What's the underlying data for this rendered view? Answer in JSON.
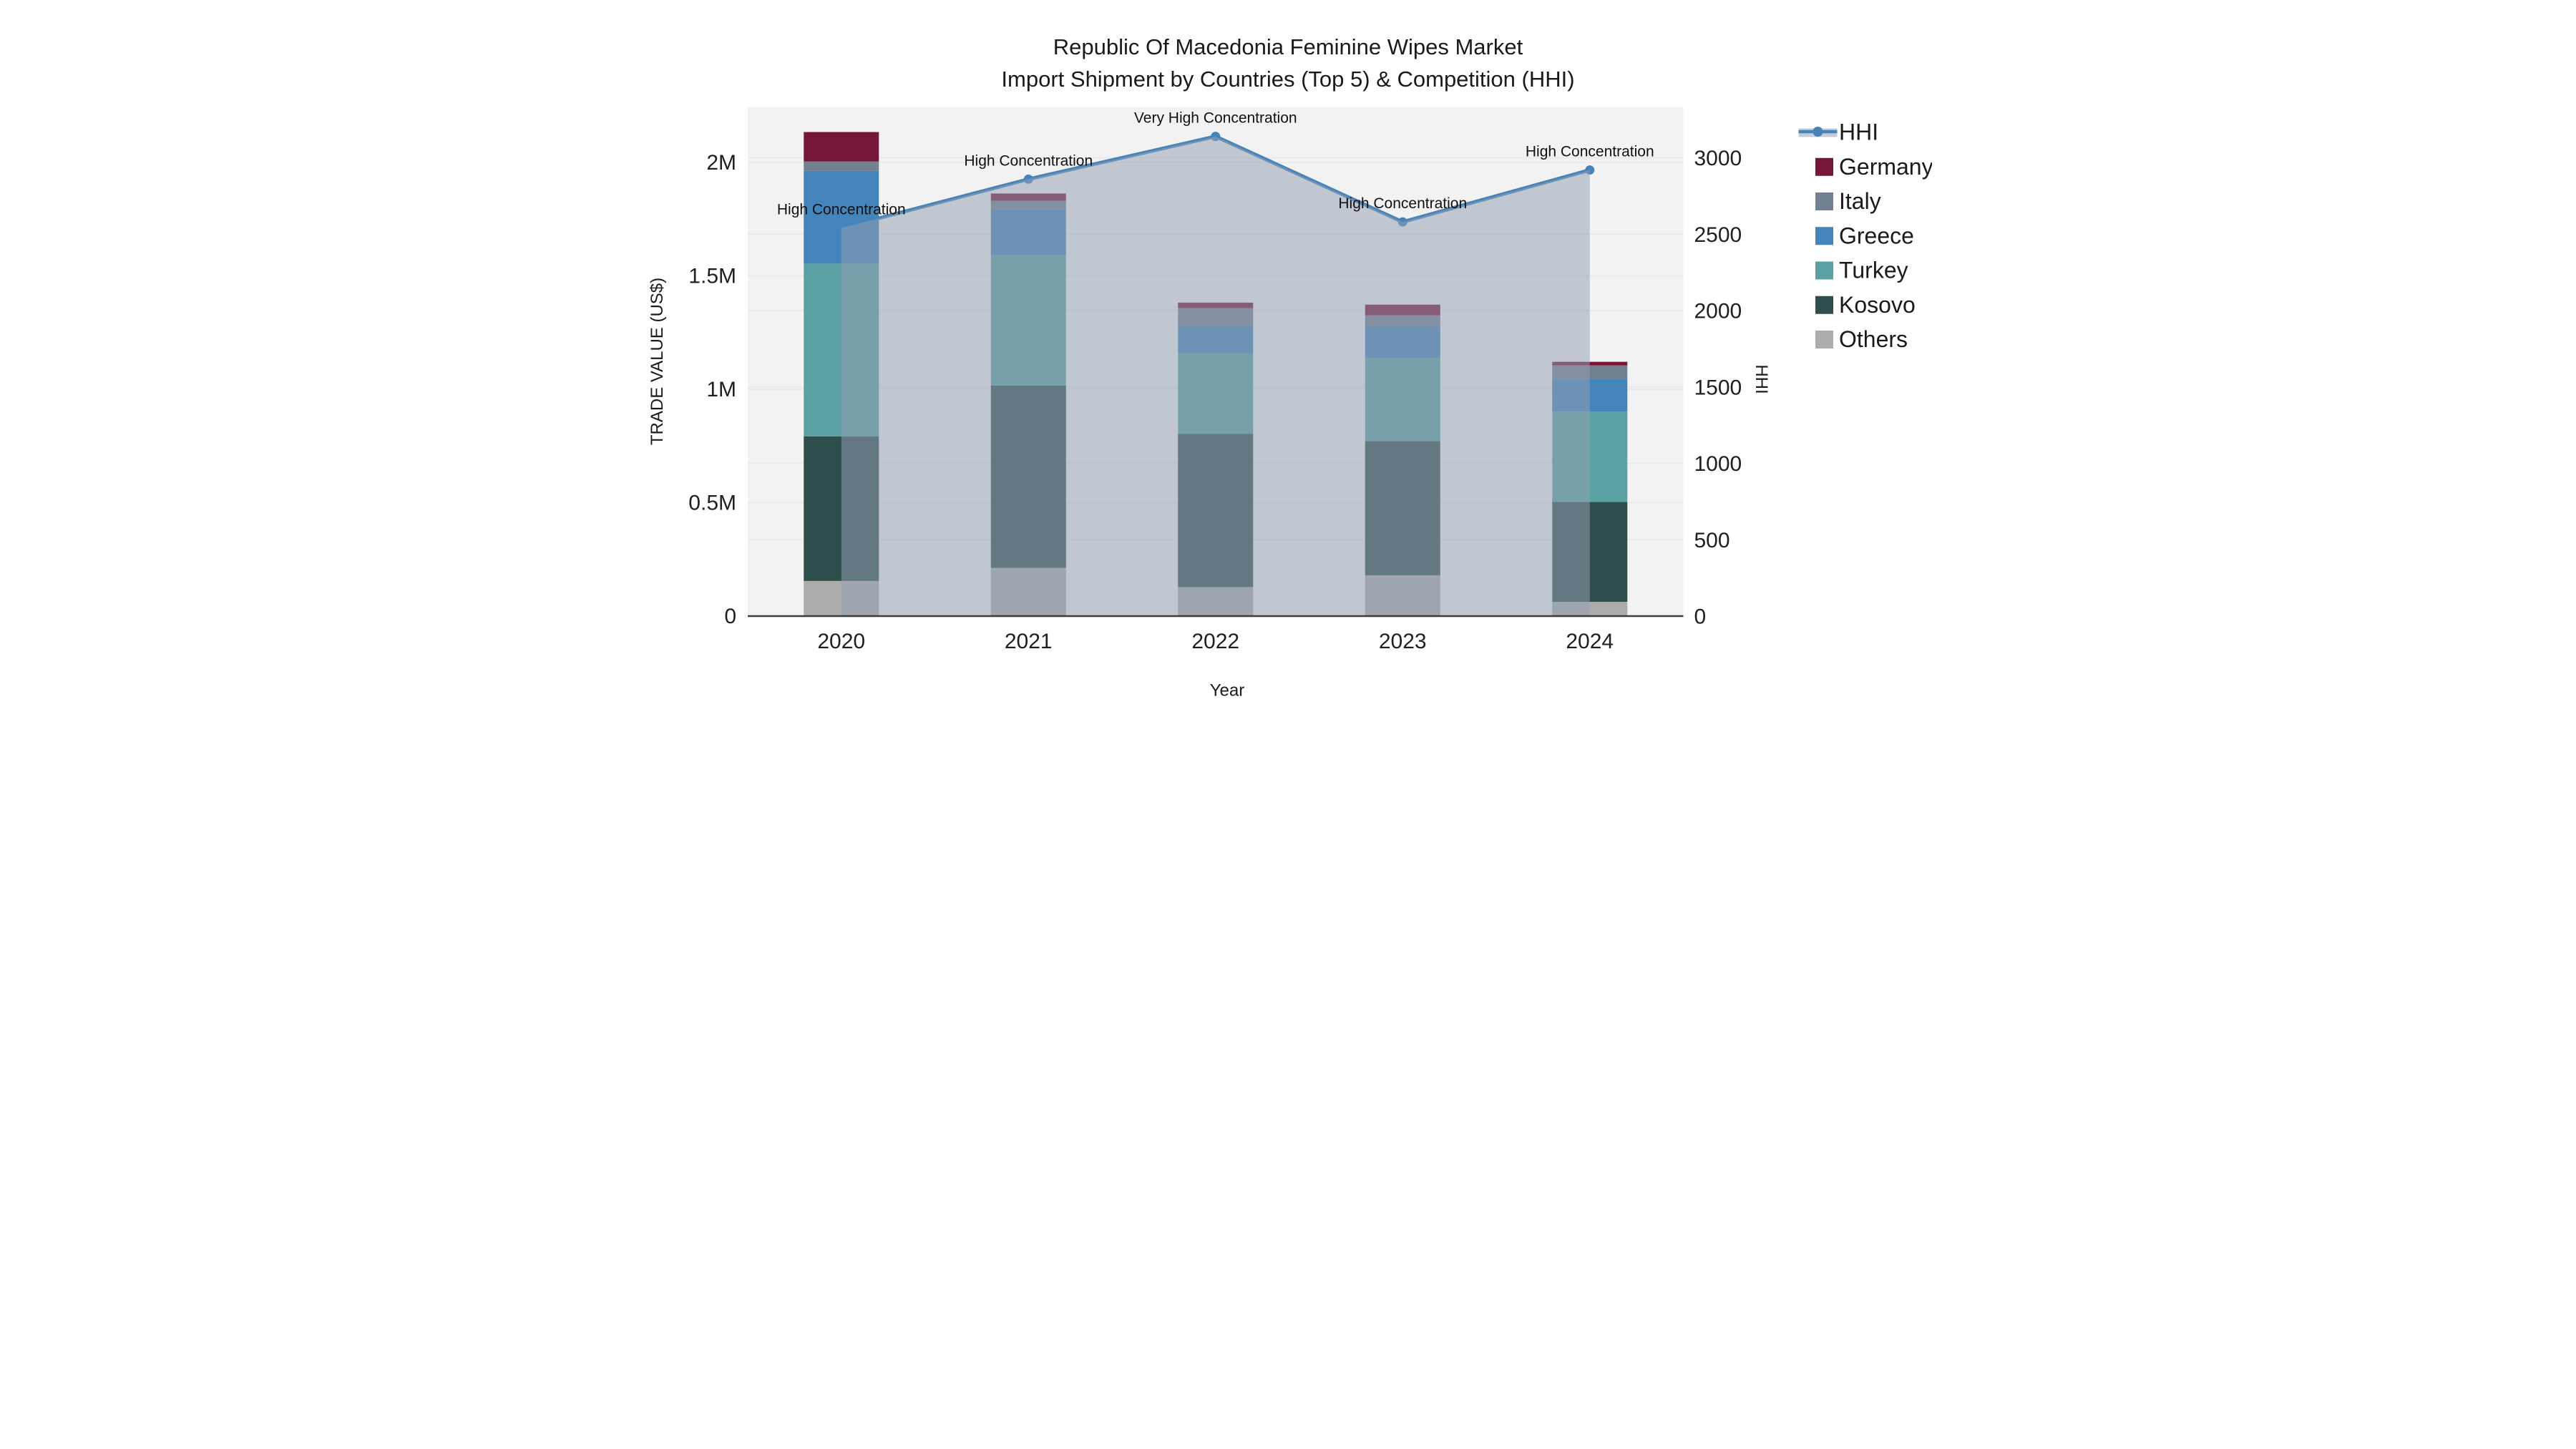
{
  "title": {
    "line1": "Republic Of Macedonia Feminine Wipes Market",
    "line2": "Import Shipment by Countries (Top 5) & Competition (HHI)"
  },
  "chart_data": {
    "type": "bar",
    "subtype": "stacked-bars-with-hhi-line-and-area-overlay",
    "title": "Republic Of Macedonia Feminine Wipes Market Import Shipment by Countries (Top 5) & Competition (HHI)",
    "xlabel": "Year",
    "ylabel_left": "TRADE VALUE (US$)",
    "ylabel_right": "HHI",
    "categories": [
      "2020",
      "2021",
      "2022",
      "2023",
      "2024"
    ],
    "stack_order_bottom_to_top": [
      "Others",
      "Kosovo",
      "Turkey",
      "Greece",
      "Italy",
      "Germany"
    ],
    "series": [
      {
        "name": "Germany",
        "color": "#75163a",
        "values": [
          130000,
          32000,
          24000,
          47000,
          16000
        ]
      },
      {
        "name": "Italy",
        "color": "#73808f",
        "values": [
          41000,
          39000,
          82000,
          50000,
          58000
        ]
      },
      {
        "name": "Greece",
        "color": "#4384bb",
        "values": [
          409000,
          199000,
          117000,
          137000,
          145000
        ]
      },
      {
        "name": "Turkey",
        "color": "#5ba1a4",
        "values": [
          762000,
          577000,
          356000,
          368000,
          399000
        ]
      },
      {
        "name": "Kosovo",
        "color": "#2e4e4c",
        "values": [
          637000,
          803000,
          675000,
          591000,
          440000
        ]
      },
      {
        "name": "Others",
        "color": "#acacaa",
        "values": [
          155000,
          213000,
          128000,
          180000,
          63000
        ]
      }
    ],
    "bar_totals": [
      2134000,
      1863000,
      1382000,
      1373000,
      1121000
    ],
    "line_series": {
      "name": "HHI",
      "color": "#4683b8",
      "fill_color": "rgba(148,160,178,0.52)",
      "values": [
        2540,
        2860,
        3140,
        2580,
        2920
      ],
      "annotations": [
        "High Concentration",
        "High Concentration",
        "Very High Concentration",
        "High Concentration",
        "High Concentration"
      ]
    },
    "axis_left": {
      "ticks": [
        "0",
        "0.5M",
        "1M",
        "1.5M",
        "2M"
      ],
      "tick_values": [
        0,
        500000,
        1000000,
        1500000,
        2000000
      ],
      "range": [
        0,
        2240000
      ]
    },
    "axis_right": {
      "ticks": [
        "0",
        "500",
        "1000",
        "1500",
        "2000",
        "2500",
        "3000"
      ],
      "tick_values": [
        0,
        500,
        1000,
        1500,
        2000,
        2500,
        3000
      ],
      "range": [
        0,
        3400
      ]
    },
    "legend": [
      "HHI",
      "Germany",
      "Italy",
      "Greece",
      "Turkey",
      "Kosovo",
      "Others"
    ],
    "legend_position": "right",
    "grid": true,
    "plot_background": "#f2f2f3",
    "grid_color": "#e6e8eb",
    "axis_line_color": "#3c3c3c"
  }
}
